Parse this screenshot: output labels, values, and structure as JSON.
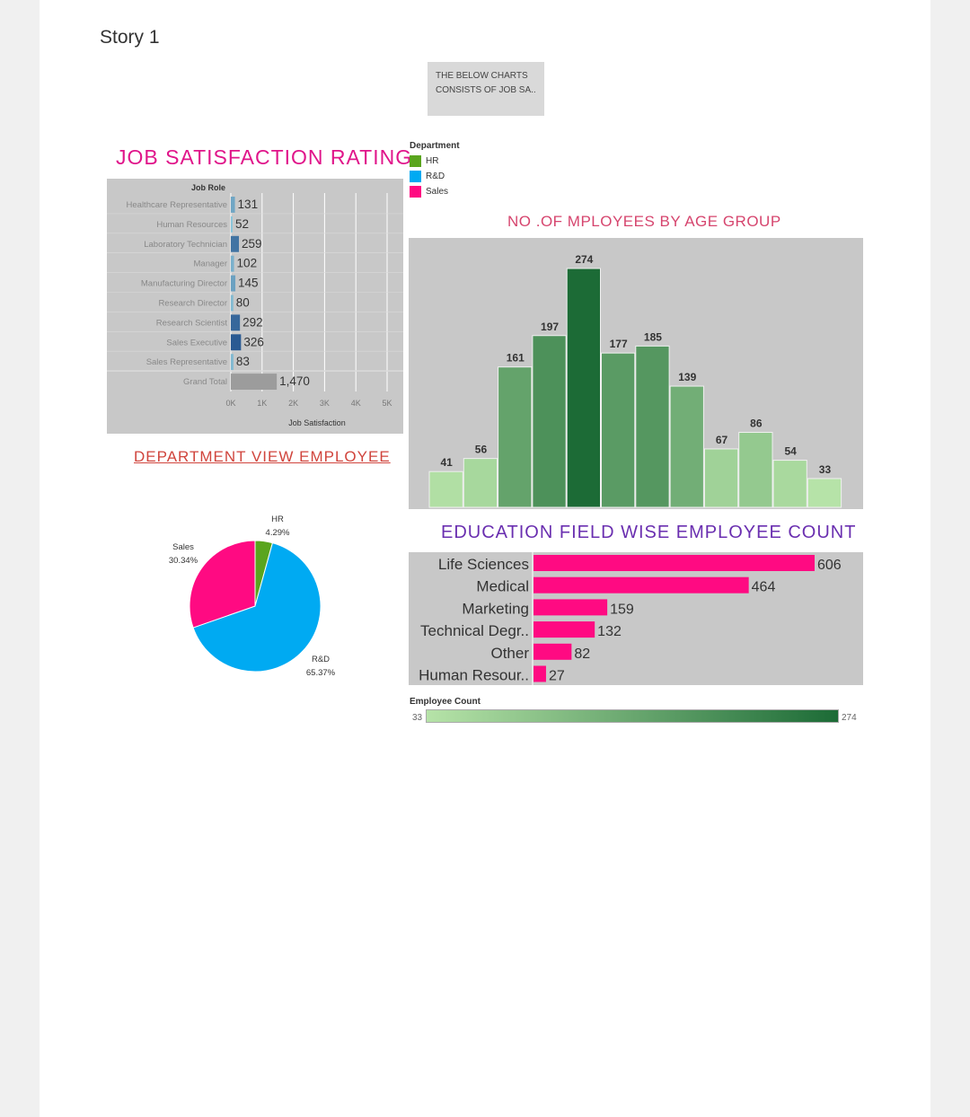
{
  "page": {
    "title": "Story 1",
    "note": "THE BELOW CHARTS CONSISTS OF JOB SA..",
    "colors": {
      "pink": "#ff0a82",
      "hr": "#5aa51e",
      "rnd": "#00aaf2",
      "sales": "#ff0a82"
    }
  },
  "legend": {
    "title": "Department",
    "items": [
      {
        "label": "HR",
        "color": "#5aa51e"
      },
      {
        "label": "R&D",
        "color": "#00aaf2"
      },
      {
        "label": "Sales",
        "color": "#ff0a82"
      }
    ]
  },
  "color_scale": {
    "label": "Employee Count",
    "min": "33",
    "max": "274"
  },
  "chart_data": [
    {
      "id": "job",
      "type": "bar",
      "orientation": "horizontal",
      "title": "JOB SATISFACTION RATING",
      "ylabel": "Job Role",
      "xlabel": "Job Satisfaction",
      "categories": [
        "Healthcare Representative",
        "Human Resources",
        "Laboratory Technician",
        "Manager",
        "Manufacturing Director",
        "Research Director",
        "Research Scientist",
        "Sales Executive",
        "Sales Representative",
        "Grand Total"
      ],
      "values": [
        131,
        52,
        259,
        102,
        145,
        80,
        292,
        326,
        83,
        1470
      ],
      "value_labels": [
        "131",
        "52",
        "259",
        "102",
        "145",
        "80",
        "292",
        "326",
        "83",
        "1,470"
      ],
      "xticks": [
        "0K",
        "1K",
        "2K",
        "3K",
        "4K",
        "5K"
      ],
      "xlim": [
        0,
        5000
      ]
    },
    {
      "id": "age",
      "type": "bar",
      "title": "NO .OF MPLOYEES BY AGE GROUP",
      "values": [
        41,
        56,
        161,
        197,
        274,
        177,
        185,
        139,
        67,
        86,
        54,
        33
      ],
      "color_scale": [
        33,
        274
      ]
    },
    {
      "id": "dept",
      "type": "pie",
      "title": "DEPARTMENT VIEW EMPLOYEE",
      "slices": [
        {
          "label": "HR",
          "pct": "4.29%",
          "value": 4.29,
          "color": "#5aa51e"
        },
        {
          "label": "R&D",
          "pct": "65.37%",
          "value": 65.37,
          "color": "#00aaf2"
        },
        {
          "label": "Sales",
          "pct": "30.34%",
          "value": 30.34,
          "color": "#ff0a82"
        }
      ]
    },
    {
      "id": "edu",
      "type": "bar",
      "orientation": "horizontal",
      "title": "EDUCATION FIELD WISE EMPLOYEE COUNT",
      "categories": [
        "Life Sciences",
        "Medical",
        "Marketing",
        "Technical Degr..",
        "Other",
        "Human Resour.."
      ],
      "values": [
        606,
        464,
        159,
        132,
        82,
        27
      ]
    }
  ]
}
